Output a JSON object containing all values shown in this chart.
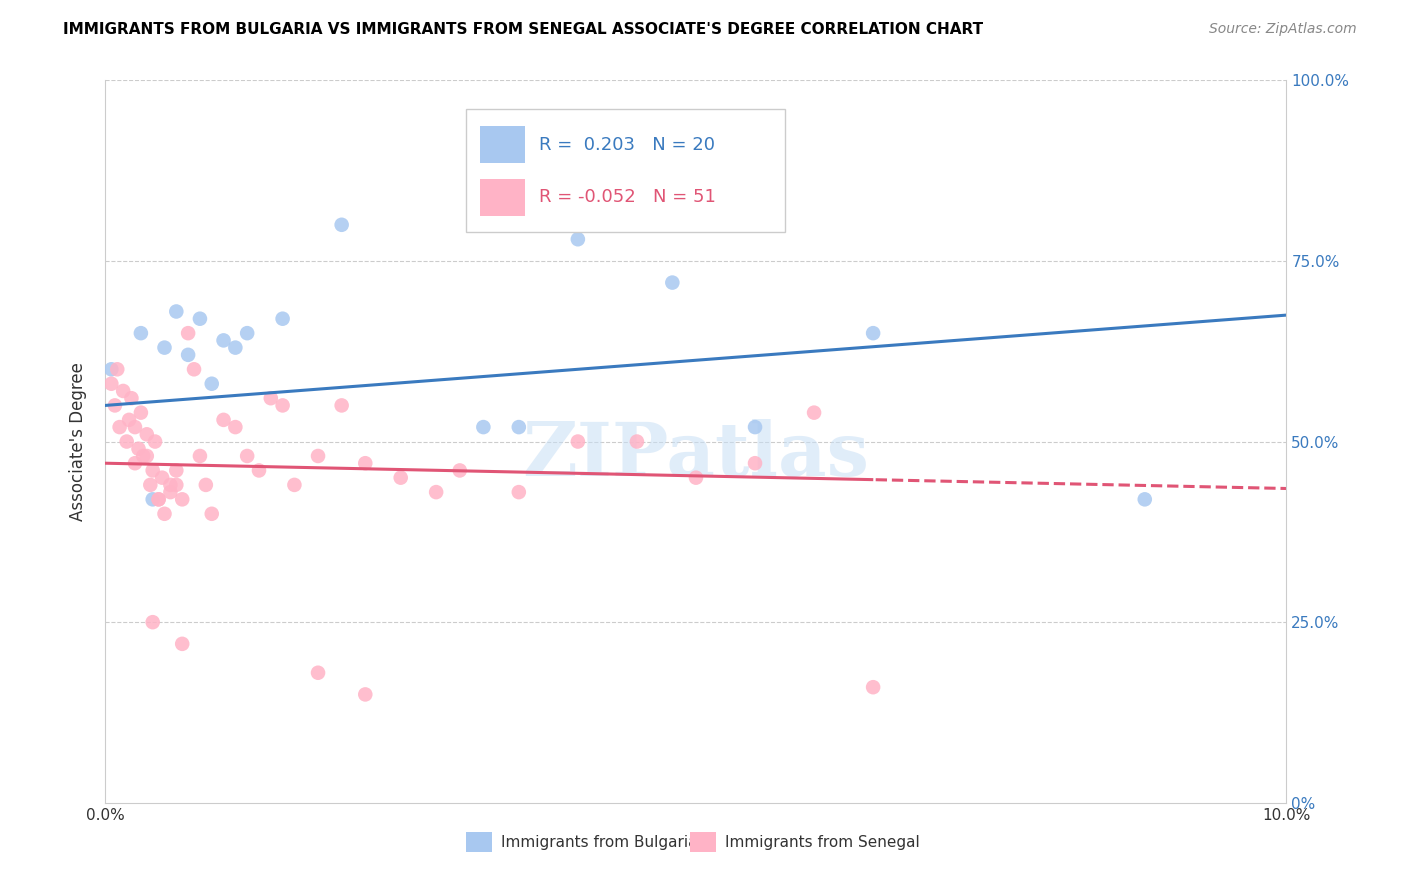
{
  "title": "IMMIGRANTS FROM BULGARIA VS IMMIGRANTS FROM SENEGAL ASSOCIATE'S DEGREE CORRELATION CHART",
  "source": "Source: ZipAtlas.com",
  "ylabel": "Associate's Degree",
  "xlim": [
    0.0,
    10.0
  ],
  "ylim": [
    0.0,
    100.0
  ],
  "watermark": "ZIPatlas",
  "legend_blue_r": "0.203",
  "legend_blue_n": "20",
  "legend_pink_r": "-0.052",
  "legend_pink_n": "51",
  "blue_color": "#a8c8f0",
  "pink_color": "#ffb3c6",
  "blue_line_color": "#3a7abf",
  "pink_line_color": "#e05575",
  "blue_scatter_x": [
    0.05,
    0.3,
    0.5,
    0.6,
    0.7,
    0.8,
    0.9,
    1.0,
    1.1,
    1.2,
    1.5,
    2.0,
    3.2,
    3.5,
    4.0,
    4.8,
    5.5,
    6.5,
    8.8,
    0.4
  ],
  "blue_scatter_y": [
    60,
    65,
    63,
    68,
    62,
    67,
    58,
    64,
    63,
    65,
    67,
    80,
    52,
    52,
    78,
    72,
    52,
    65,
    42,
    42
  ],
  "pink_scatter_x": [
    0.05,
    0.08,
    0.1,
    0.12,
    0.15,
    0.18,
    0.2,
    0.22,
    0.25,
    0.28,
    0.3,
    0.32,
    0.35,
    0.38,
    0.4,
    0.42,
    0.45,
    0.48,
    0.5,
    0.55,
    0.6,
    0.65,
    0.7,
    0.75,
    0.8,
    0.85,
    0.9,
    1.0,
    1.1,
    1.2,
    1.3,
    1.5,
    1.6,
    1.8,
    2.0,
    2.2,
    2.5,
    2.8,
    3.0,
    3.5,
    4.0,
    4.5,
    5.0,
    5.5,
    6.0,
    0.55,
    0.45,
    0.35,
    0.25,
    1.4,
    0.6
  ],
  "pink_scatter_y": [
    58,
    55,
    60,
    52,
    57,
    50,
    53,
    56,
    47,
    49,
    54,
    48,
    51,
    44,
    46,
    50,
    42,
    45,
    40,
    43,
    46,
    42,
    65,
    60,
    48,
    44,
    40,
    53,
    52,
    48,
    46,
    55,
    44,
    48,
    55,
    47,
    45,
    43,
    46,
    43,
    50,
    50,
    45,
    47,
    54,
    44,
    42,
    48,
    52,
    56,
    44
  ],
  "pink_low_x": [
    0.4,
    0.65,
    1.8,
    2.2,
    6.5
  ],
  "pink_low_y": [
    25,
    22,
    18,
    15,
    16
  ]
}
